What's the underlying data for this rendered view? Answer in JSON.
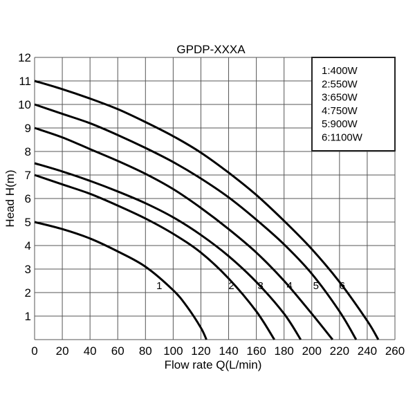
{
  "chart_data": {
    "type": "line",
    "title": "GPDP-XXXA",
    "xlabel": "Flow rate Q(L/min)",
    "ylabel": "Head H(m)",
    "xlim": [
      0,
      260
    ],
    "ylim": [
      0,
      12
    ],
    "x_ticks": [
      0,
      20,
      40,
      60,
      80,
      100,
      120,
      140,
      160,
      180,
      200,
      220,
      240,
      260
    ],
    "y_ticks": [
      1,
      2,
      3,
      4,
      5,
      6,
      7,
      8,
      9,
      10,
      11,
      12
    ],
    "grid": true,
    "legend_position": "upper right",
    "legend": [
      "1:400W",
      "2:550W",
      "3:650W",
      "4:750W",
      "5:900W",
      "6:1100W"
    ],
    "series": [
      {
        "name": "1:400W",
        "label": "1",
        "label_pos": [
          90,
          2.2
        ],
        "x": [
          0,
          20,
          40,
          60,
          80,
          100,
          110,
          120,
          124
        ],
        "y": [
          5.0,
          4.7,
          4.3,
          3.75,
          3.1,
          2.1,
          1.4,
          0.5,
          0
        ]
      },
      {
        "name": "2:550W",
        "label": "2",
        "label_pos": [
          142,
          2.2
        ],
        "x": [
          0,
          20,
          40,
          60,
          80,
          100,
          120,
          140,
          160,
          173
        ],
        "y": [
          7.0,
          6.6,
          6.2,
          5.7,
          5.15,
          4.5,
          3.7,
          2.6,
          1.2,
          0
        ]
      },
      {
        "name": "3:650W",
        "label": "3",
        "label_pos": [
          163,
          2.2
        ],
        "x": [
          0,
          20,
          40,
          60,
          80,
          100,
          120,
          140,
          160,
          180,
          192
        ],
        "y": [
          7.5,
          7.15,
          6.75,
          6.3,
          5.8,
          5.2,
          4.45,
          3.55,
          2.45,
          1.1,
          0
        ]
      },
      {
        "name": "4:750W",
        "label": "4",
        "label_pos": [
          184,
          2.2
        ],
        "x": [
          0,
          20,
          40,
          60,
          80,
          100,
          120,
          140,
          160,
          180,
          200,
          215
        ],
        "y": [
          9.0,
          8.6,
          8.1,
          7.6,
          7.05,
          6.4,
          5.6,
          4.7,
          3.7,
          2.5,
          1.1,
          0
        ]
      },
      {
        "name": "5:900W",
        "label": "5",
        "label_pos": [
          203,
          2.2
        ],
        "x": [
          0,
          20,
          40,
          60,
          80,
          100,
          120,
          140,
          160,
          180,
          200,
          220,
          232
        ],
        "y": [
          10.0,
          9.6,
          9.2,
          8.7,
          8.15,
          7.55,
          6.85,
          6.05,
          5.1,
          4.05,
          2.8,
          1.2,
          0
        ]
      },
      {
        "name": "6:1100W",
        "label": "6",
        "label_pos": [
          222,
          2.2
        ],
        "x": [
          0,
          20,
          40,
          60,
          80,
          100,
          120,
          140,
          160,
          180,
          200,
          220,
          240,
          248
        ],
        "y": [
          11.0,
          10.65,
          10.25,
          9.8,
          9.25,
          8.65,
          7.95,
          7.1,
          6.15,
          5.05,
          3.85,
          2.45,
          0.8,
          0
        ]
      }
    ]
  }
}
